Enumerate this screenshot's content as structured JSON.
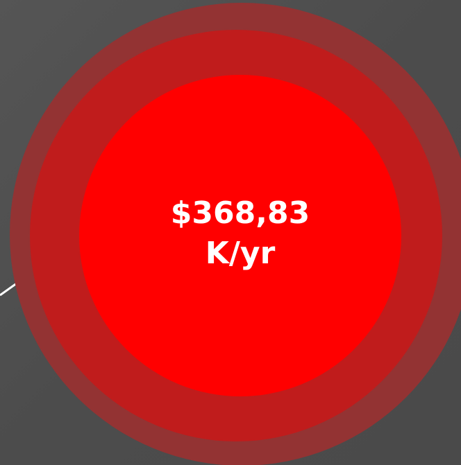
{
  "label": {
    "amount": "$368,83",
    "unit": "K/yr"
  }
}
